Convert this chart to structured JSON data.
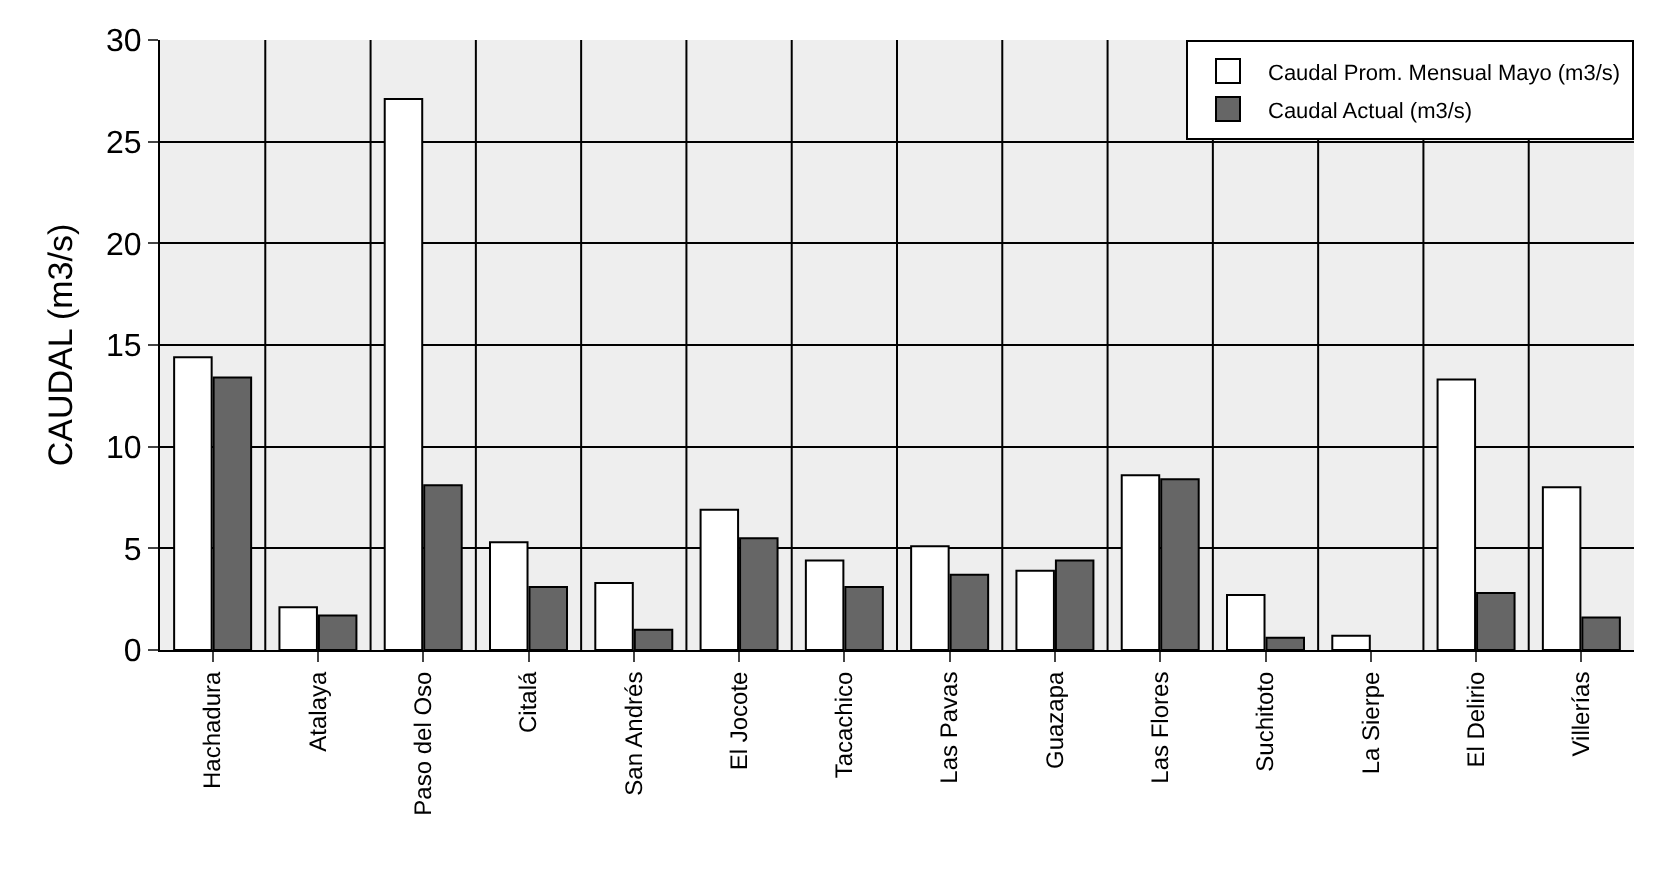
{
  "chart_data": {
    "type": "bar",
    "ylabel": "CAUDAL (m3/s)",
    "categories": [
      "Hachadura",
      "Atalaya",
      "Paso del Oso",
      "Citalá",
      "San Andrés",
      "El Jocote",
      "Tacachico",
      "Las Pavas",
      "Guazapa",
      "Las Flores",
      "Suchitoto",
      "La Sierpe",
      "El Delirio",
      "Villerías"
    ],
    "series": [
      {
        "name": "Caudal Prom. Mensual Mayo (m3/s)",
        "color": "#ffffff",
        "values": [
          14.4,
          2.1,
          27.1,
          5.3,
          3.3,
          6.9,
          4.4,
          5.1,
          3.9,
          8.6,
          2.7,
          0.7,
          13.3,
          8.0
        ]
      },
      {
        "name": "Caudal Actual (m3/s)",
        "color": "#666666",
        "values": [
          13.4,
          1.7,
          8.1,
          3.1,
          1.0,
          5.5,
          3.1,
          3.7,
          4.4,
          8.4,
          0.6,
          null,
          2.8,
          1.6
        ]
      }
    ],
    "ylim": [
      0,
      30
    ],
    "yticks": [
      0,
      5,
      10,
      15,
      20,
      25,
      30
    ],
    "grid": true,
    "legend": "top right"
  }
}
